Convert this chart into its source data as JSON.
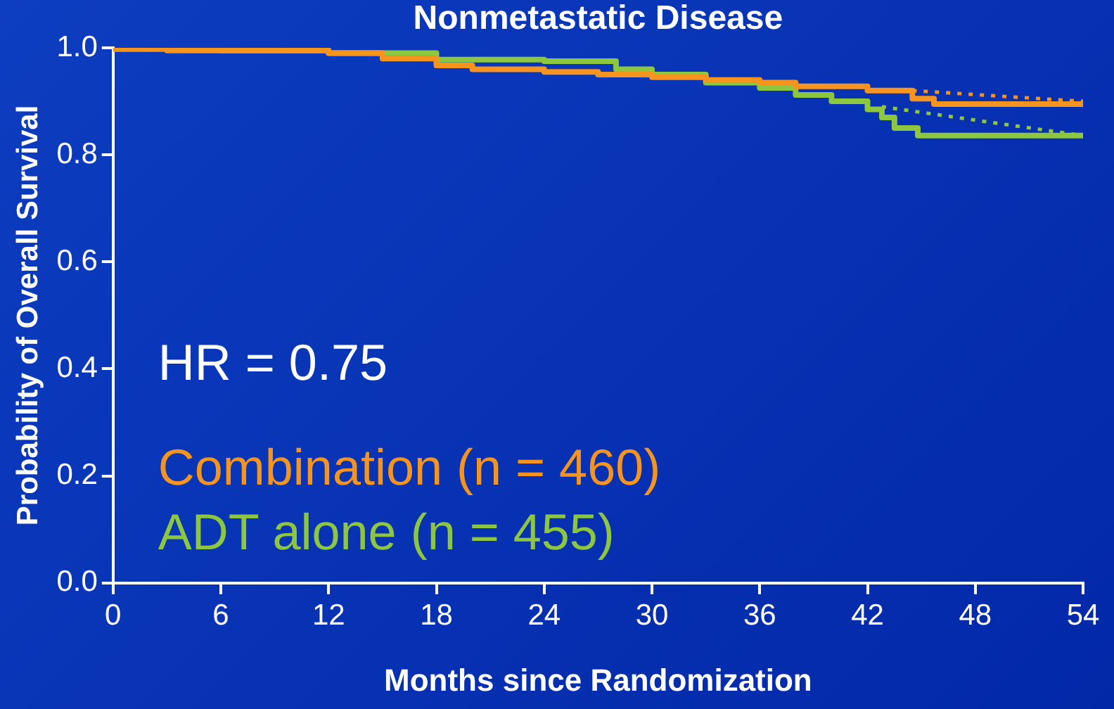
{
  "chart_data": {
    "type": "step",
    "title": "Nonmetastatic Disease",
    "xlabel": "Months since Randomization",
    "ylabel": "Probability of Overall Survival",
    "xlim": [
      0,
      54
    ],
    "xticks": [
      0,
      6,
      12,
      18,
      24,
      30,
      36,
      42,
      48,
      54
    ],
    "ylim": [
      0,
      1
    ],
    "yticks": [
      {
        "value": 0,
        "label": "0.0"
      },
      {
        "value": 0.2,
        "label": "0.2"
      },
      {
        "value": 0.4,
        "label": "0.4"
      },
      {
        "value": 0.6,
        "label": "0.6"
      },
      {
        "value": 0.8,
        "label": "0.8"
      },
      {
        "value": 1,
        "label": "1.0"
      }
    ],
    "grid": false,
    "legend": "bottom left",
    "marker": "none",
    "annotations": [
      "HR = 0.75"
    ],
    "series": [
      {
        "name": "Combination (n = 460)",
        "color": "#f7941d",
        "x": [
          0,
          3,
          12,
          15,
          18,
          20,
          24,
          27,
          30,
          33,
          36,
          38,
          42,
          44.5,
          45.7,
          46.7,
          54
        ],
        "values": [
          1.0,
          0.998,
          0.995,
          0.99,
          0.98,
          0.967,
          0.96,
          0.955,
          0.95,
          0.945,
          0.94,
          0.935,
          0.928,
          0.92,
          0.905,
          0.895,
          0.895
        ]
      },
      {
        "name": "ADT alone (n = 455)",
        "color": "#8dc63f",
        "x": [
          0,
          6,
          12,
          18,
          24,
          28,
          30,
          33,
          36,
          38,
          40,
          42,
          42.8,
          43.5,
          44.8,
          49.8,
          54
        ],
        "values": [
          1.0,
          0.998,
          0.995,
          0.99,
          0.978,
          0.975,
          0.96,
          0.95,
          0.935,
          0.925,
          0.912,
          0.9,
          0.885,
          0.87,
          0.85,
          0.836,
          0.836
        ]
      },
      {
        "type": "line",
        "line_style": "dotted",
        "color": "#f7941d",
        "x": [
          44.5,
          54
        ],
        "values": [
          0.92,
          0.9
        ]
      },
      {
        "type": "line",
        "line_style": "dotted",
        "color": "#8dc63f",
        "x": [
          42.8,
          54
        ],
        "values": [
          0.89,
          0.836
        ]
      }
    ]
  }
}
